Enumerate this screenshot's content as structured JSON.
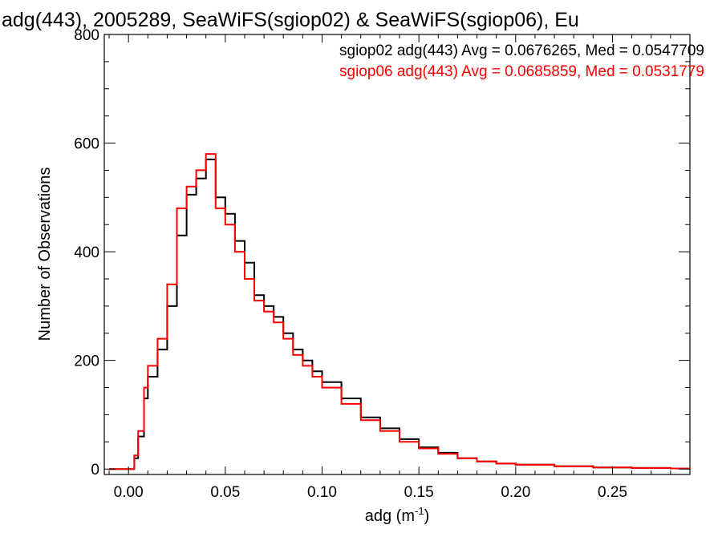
{
  "chart_data": {
    "type": "line",
    "title": "adg(443), 2005289, SeaWiFS(sgiop02) & SeaWiFS(sgiop06), Eu",
    "xlabel": "adg (m",
    "xlabel_sup": "-1",
    "xlabel_suffix": ")",
    "ylabel": "Number of Observations",
    "xlim": [
      -0.0125,
      0.29
    ],
    "ylim": [
      -10,
      800
    ],
    "xticks": [
      0.0,
      0.05,
      0.1,
      0.15,
      0.2,
      0.25
    ],
    "xtick_labels": [
      "0.00",
      "0.05",
      "0.10",
      "0.15",
      "0.20",
      "0.25"
    ],
    "yticks": [
      0,
      200,
      400,
      600,
      800
    ],
    "ytick_labels": [
      "0",
      "200",
      "400",
      "600",
      "800"
    ],
    "grid": false,
    "legend_position": "top-right",
    "annotations": [
      {
        "text": "sgiop02 adg(443) Avg = 0.0676265, Med = 0.0547709",
        "color": "#000000"
      },
      {
        "text": "sgiop06 adg(443) Avg = 0.0685859, Med = 0.0531779",
        "color": "#ff0000"
      }
    ],
    "series": [
      {
        "color": "#000000",
        "x": [
          -0.01,
          -0.005,
          0.0,
          0.003,
          0.005,
          0.008,
          0.01,
          0.015,
          0.02,
          0.025,
          0.03,
          0.035,
          0.04,
          0.045,
          0.05,
          0.055,
          0.06,
          0.065,
          0.07,
          0.075,
          0.08,
          0.085,
          0.09,
          0.095,
          0.1,
          0.11,
          0.12,
          0.13,
          0.14,
          0.15,
          0.16,
          0.17,
          0.18,
          0.19,
          0.2,
          0.22,
          0.24,
          0.26,
          0.28,
          0.29
        ],
        "y": [
          0,
          0,
          0,
          20,
          60,
          130,
          170,
          220,
          300,
          430,
          505,
          535,
          570,
          500,
          470,
          420,
          380,
          320,
          300,
          280,
          250,
          220,
          200,
          180,
          160,
          130,
          95,
          75,
          55,
          40,
          30,
          20,
          14,
          10,
          8,
          5,
          3,
          2,
          1,
          0
        ]
      },
      {
        "color": "#ff0000",
        "x": [
          -0.01,
          -0.005,
          0.0,
          0.003,
          0.005,
          0.008,
          0.01,
          0.015,
          0.02,
          0.025,
          0.03,
          0.035,
          0.04,
          0.045,
          0.05,
          0.055,
          0.06,
          0.065,
          0.07,
          0.075,
          0.08,
          0.085,
          0.09,
          0.095,
          0.1,
          0.11,
          0.12,
          0.13,
          0.14,
          0.15,
          0.16,
          0.17,
          0.18,
          0.19,
          0.2,
          0.22,
          0.24,
          0.26,
          0.28,
          0.29
        ],
        "y": [
          0,
          0,
          0,
          25,
          70,
          150,
          190,
          240,
          340,
          480,
          520,
          550,
          580,
          480,
          450,
          400,
          350,
          310,
          290,
          270,
          240,
          210,
          190,
          170,
          150,
          120,
          90,
          70,
          50,
          38,
          28,
          20,
          14,
          10,
          8,
          5,
          3,
          2,
          1,
          0
        ]
      }
    ]
  }
}
